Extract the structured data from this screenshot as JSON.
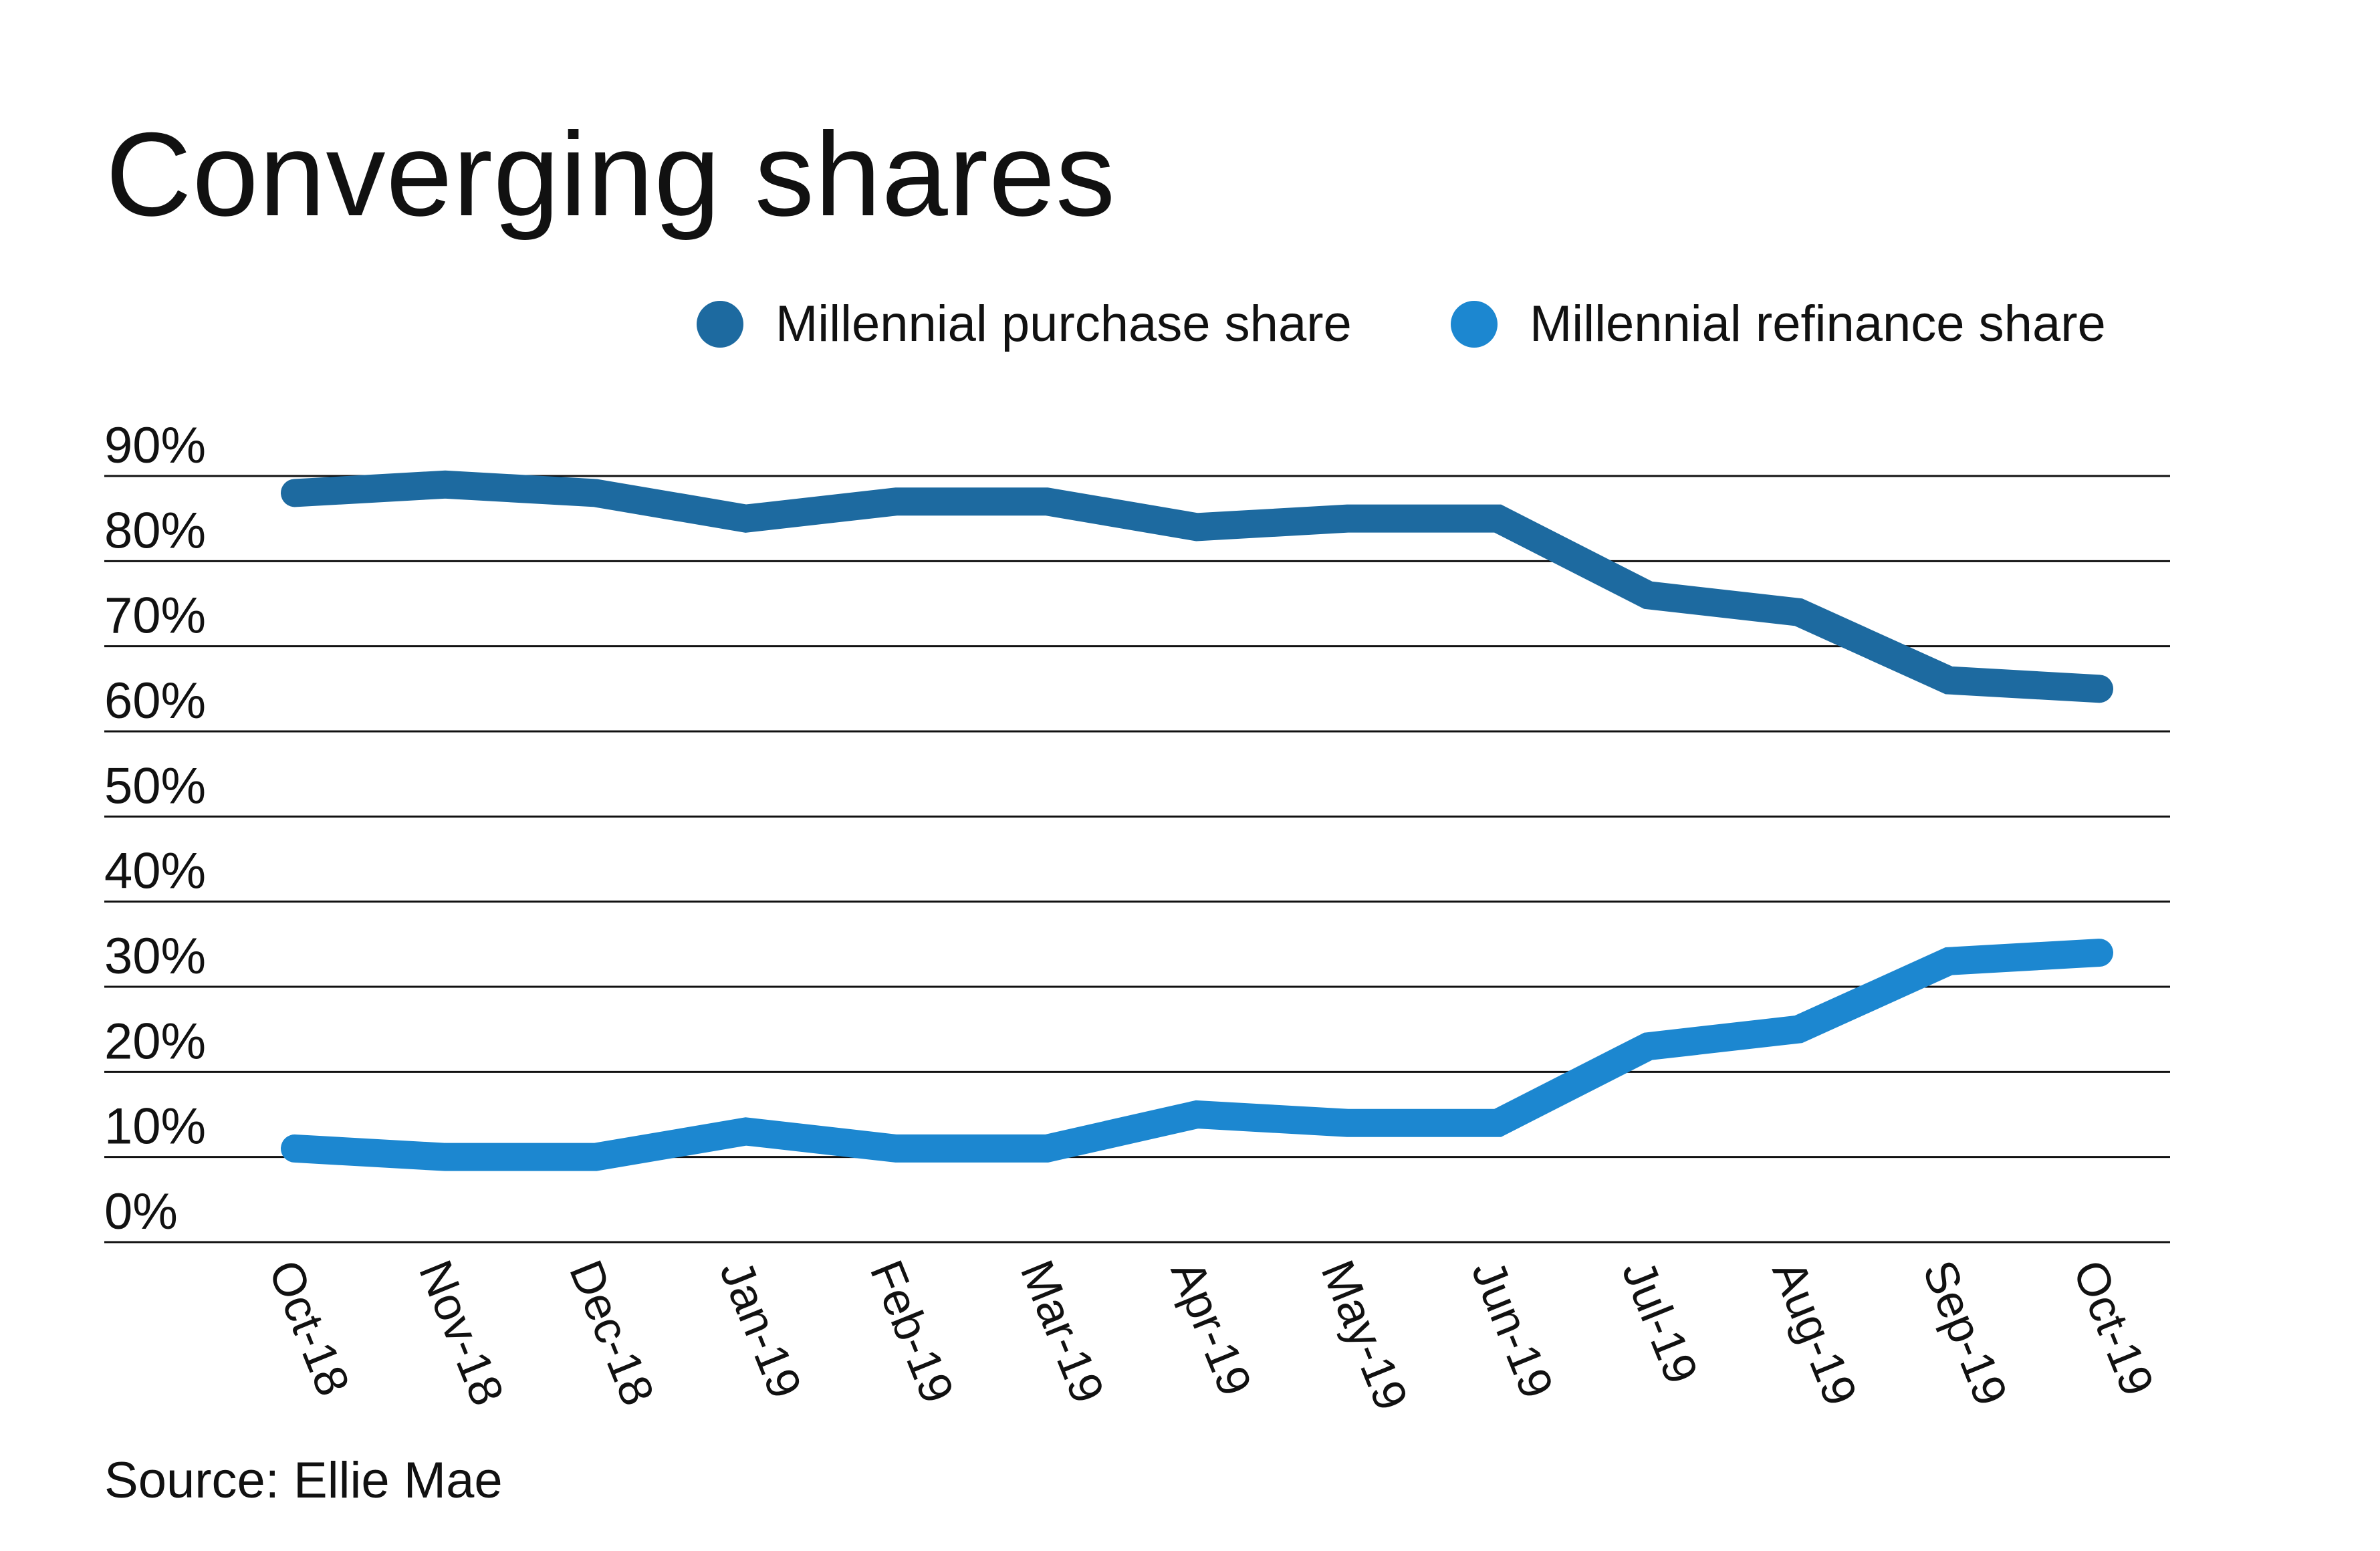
{
  "chart_data": {
    "type": "line",
    "title": "Converging shares",
    "xlabel": "",
    "ylabel": "",
    "categories": [
      "Oct-18",
      "Nov-18",
      "Dec-18",
      "Jan-19",
      "Feb-19",
      "Mar-19",
      "Apr-19",
      "May-19",
      "Jun-19",
      "Jul-19",
      "Aug-19",
      "Sep-19",
      "Oct-19"
    ],
    "ylim": [
      0,
      90
    ],
    "yticks": [
      90,
      80,
      70,
      60,
      50,
      40,
      30,
      20,
      10,
      0
    ],
    "ytick_labels": [
      "90%",
      "80%",
      "70%",
      "60%",
      "50%",
      "40%",
      "30%",
      "20%",
      "10%",
      "0%"
    ],
    "grid": true,
    "legend_position": "top-right",
    "series": [
      {
        "name": "Millennial purchase share",
        "color": "#1d6aa0",
        "values": [
          88,
          89,
          88,
          85,
          87,
          87,
          84,
          85,
          85,
          76,
          74,
          66,
          65
        ]
      },
      {
        "name": "Millennial refinance share",
        "color": "#1c87d0",
        "values": [
          11,
          10,
          10,
          13,
          11,
          11,
          15,
          14,
          14,
          23,
          25,
          33,
          34
        ]
      }
    ],
    "source": "Source: Ellie Mae"
  }
}
